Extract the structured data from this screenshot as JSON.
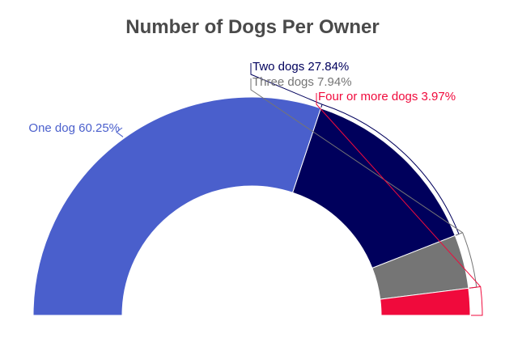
{
  "chart_data": {
    "type": "pie",
    "subtype": "semi-donut",
    "title": "Number of Dogs Per Owner",
    "slices": [
      {
        "name": "One dog",
        "value": 60.25,
        "label": "One dog 60.25%",
        "color": "#4a5fcc"
      },
      {
        "name": "Two dogs",
        "value": 27.84,
        "label": "Two dogs 27.84%",
        "color": "#00005c"
      },
      {
        "name": "Three dogs",
        "value": 7.94,
        "label": "Three dogs 7.94%",
        "color": "#757575"
      },
      {
        "name": "Four or more dogs",
        "value": 3.97,
        "label": "Four or more dogs 3.97%",
        "color": "#f00a3c"
      }
    ]
  }
}
